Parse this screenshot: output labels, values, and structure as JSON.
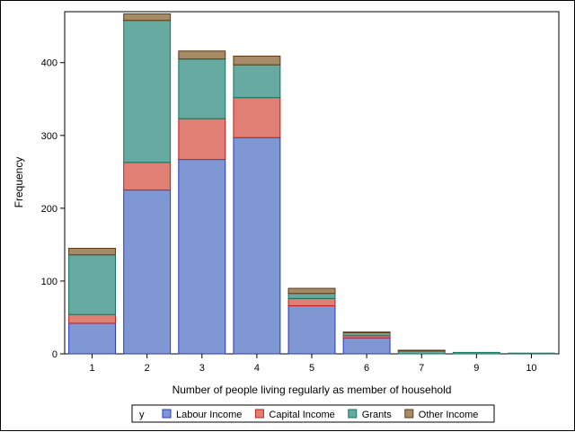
{
  "chart_data": {
    "type": "bar",
    "stacked": true,
    "title": "",
    "xlabel": "Number of people living regularly as member of household",
    "ylabel": "Frequency",
    "categories": [
      "1",
      "2",
      "3",
      "4",
      "5",
      "6",
      "7",
      "9",
      "10"
    ],
    "ylim": [
      0,
      470
    ],
    "yticks": [
      0,
      100,
      200,
      300,
      400
    ],
    "grid": false,
    "legend": {
      "title": "y",
      "placement": "bottom"
    },
    "series": [
      {
        "name": "Labour Income",
        "color": "#7f97d2",
        "stroke": "#2b39c7",
        "values": [
          42,
          225,
          267,
          297,
          66,
          22,
          0,
          0,
          0
        ]
      },
      {
        "name": "Capital Income",
        "color": "#e07f73",
        "stroke": "#c21f1f",
        "values": [
          12,
          38,
          56,
          55,
          10,
          3,
          0,
          0,
          0
        ]
      },
      {
        "name": "Grants",
        "color": "#67aaa1",
        "stroke": "#13765f",
        "values": [
          82,
          195,
          82,
          45,
          7,
          4,
          4,
          2,
          1
        ]
      },
      {
        "name": "Other Income",
        "color": "#a58b66",
        "stroke": "#5c3a16",
        "values": [
          9,
          9,
          11,
          12,
          7,
          1,
          1,
          0,
          0
        ]
      }
    ]
  }
}
